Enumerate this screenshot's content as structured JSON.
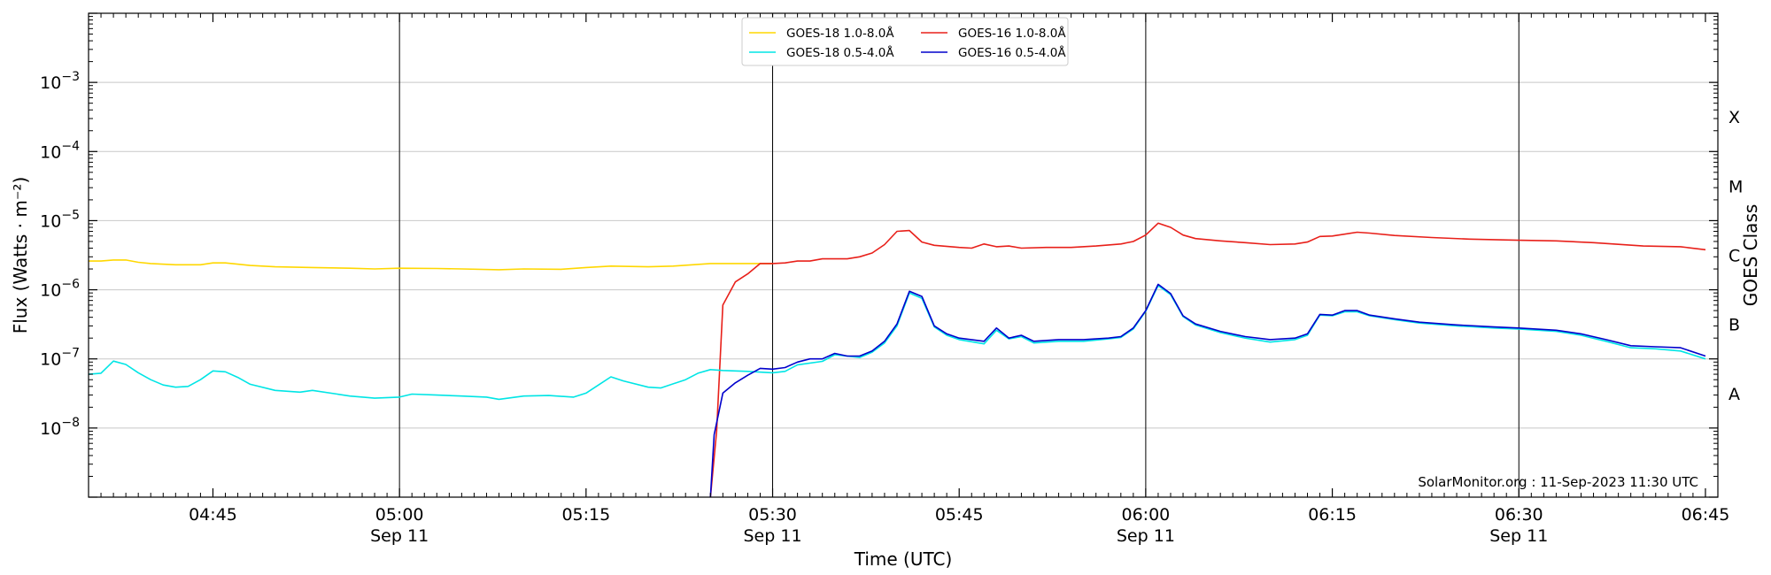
{
  "chart_data": {
    "type": "line",
    "xlabel": "Time (UTC)",
    "ylabel": "Flux (Watts · m⁻²)",
    "y2label": "GOES Class",
    "y_scale": "log",
    "ylim": [
      1e-09,
      0.01
    ],
    "xlim": [
      "04:35",
      "06:46"
    ],
    "vertical_lines": [
      "05:00",
      "05:30",
      "06:00",
      "06:30"
    ],
    "x_ticks": [
      {
        "t": "04:45",
        "label": "04:45",
        "date": ""
      },
      {
        "t": "05:00",
        "label": "05:00",
        "date": "Sep 11"
      },
      {
        "t": "05:15",
        "label": "05:15",
        "date": ""
      },
      {
        "t": "05:30",
        "label": "05:30",
        "date": "Sep 11"
      },
      {
        "t": "05:45",
        "label": "05:45",
        "date": ""
      },
      {
        "t": "06:00",
        "label": "06:00",
        "date": "Sep 11"
      },
      {
        "t": "06:15",
        "label": "06:15",
        "date": ""
      },
      {
        "t": "06:30",
        "label": "06:30",
        "date": "Sep 11"
      },
      {
        "t": "06:45",
        "label": "06:45",
        "date": ""
      }
    ],
    "y_ticks": [
      {
        "exp": -8,
        "base": "10",
        "sup": "−8"
      },
      {
        "exp": -7,
        "base": "10",
        "sup": "−7"
      },
      {
        "exp": -6,
        "base": "10",
        "sup": "−6"
      },
      {
        "exp": -5,
        "base": "10",
        "sup": "−5"
      },
      {
        "exp": -4,
        "base": "10",
        "sup": "−4"
      },
      {
        "exp": -3,
        "base": "10",
        "sup": "−3"
      }
    ],
    "goes_classes": [
      {
        "label": "A",
        "exp": -7.5
      },
      {
        "label": "B",
        "exp": -6.5
      },
      {
        "label": "C",
        "exp": -5.5
      },
      {
        "label": "M",
        "exp": -4.5
      },
      {
        "label": "X",
        "exp": -3.5
      }
    ],
    "grid": true,
    "legend_position": "top-center",
    "credit": "SolarMonitor.org : 11-Sep-2023 11:30 UTC",
    "series": [
      {
        "name": "GOES-18 1.0-8.0Å",
        "color": "#FFD700",
        "points": [
          [
            "04:35",
            2.6e-06
          ],
          [
            "04:36",
            2.6e-06
          ],
          [
            "04:37",
            2.7e-06
          ],
          [
            "04:38",
            2.7e-06
          ],
          [
            "04:39",
            2.5e-06
          ],
          [
            "04:40",
            2.4e-06
          ],
          [
            "04:42",
            2.3e-06
          ],
          [
            "04:44",
            2.3e-06
          ],
          [
            "04:45",
            2.45e-06
          ],
          [
            "04:46",
            2.45e-06
          ],
          [
            "04:48",
            2.25e-06
          ],
          [
            "04:50",
            2.15e-06
          ],
          [
            "04:53",
            2.1e-06
          ],
          [
            "04:56",
            2.05e-06
          ],
          [
            "04:58",
            2e-06
          ],
          [
            "05:00",
            2.05e-06
          ],
          [
            "05:03",
            2.03e-06
          ],
          [
            "05:05",
            2e-06
          ],
          [
            "05:08",
            1.95e-06
          ],
          [
            "05:10",
            2e-06
          ],
          [
            "05:13",
            1.98e-06
          ],
          [
            "05:15",
            2.1e-06
          ],
          [
            "05:17",
            2.2e-06
          ],
          [
            "05:20",
            2.15e-06
          ],
          [
            "05:22",
            2.2e-06
          ],
          [
            "05:25",
            2.4e-06
          ],
          [
            "05:30",
            2.4e-06
          ]
        ]
      },
      {
        "name": "GOES-16 1.0-8.0Å",
        "color": "#E8201A",
        "points": [
          [
            "05:25",
            5e-10
          ],
          [
            "05:25.5",
            9e-09
          ],
          [
            "05:26",
            6e-07
          ],
          [
            "05:27",
            1.3e-06
          ],
          [
            "05:28",
            1.7e-06
          ],
          [
            "05:29",
            2.4e-06
          ],
          [
            "05:30",
            2.4e-06
          ],
          [
            "05:31",
            2.45e-06
          ],
          [
            "05:32",
            2.6e-06
          ],
          [
            "05:33",
            2.6e-06
          ],
          [
            "05:34",
            2.8e-06
          ],
          [
            "05:35",
            2.8e-06
          ],
          [
            "05:36",
            2.8e-06
          ],
          [
            "05:37",
            3e-06
          ],
          [
            "05:38",
            3.4e-06
          ],
          [
            "05:39",
            4.5e-06
          ],
          [
            "05:40",
            7e-06
          ],
          [
            "05:41",
            7.2e-06
          ],
          [
            "05:42",
            4.9e-06
          ],
          [
            "05:43",
            4.4e-06
          ],
          [
            "05:45",
            4.1e-06
          ],
          [
            "05:46",
            4e-06
          ],
          [
            "05:47",
            4.6e-06
          ],
          [
            "05:48",
            4.2e-06
          ],
          [
            "05:49",
            4.3e-06
          ],
          [
            "05:50",
            4e-06
          ],
          [
            "05:52",
            4.1e-06
          ],
          [
            "05:54",
            4.1e-06
          ],
          [
            "05:56",
            4.3e-06
          ],
          [
            "05:58",
            4.6e-06
          ],
          [
            "05:59",
            5e-06
          ],
          [
            "06:00",
            6.2e-06
          ],
          [
            "06:01",
            9.2e-06
          ],
          [
            "06:02",
            8e-06
          ],
          [
            "06:03",
            6.2e-06
          ],
          [
            "06:04",
            5.5e-06
          ],
          [
            "06:06",
            5.1e-06
          ],
          [
            "06:08",
            4.8e-06
          ],
          [
            "06:10",
            4.5e-06
          ],
          [
            "06:12",
            4.6e-06
          ],
          [
            "06:13",
            4.9e-06
          ],
          [
            "06:14",
            5.9e-06
          ],
          [
            "06:15",
            6e-06
          ],
          [
            "06:17",
            6.8e-06
          ],
          [
            "06:18",
            6.6e-06
          ],
          [
            "06:20",
            6.1e-06
          ],
          [
            "06:23",
            5.7e-06
          ],
          [
            "06:26",
            5.4e-06
          ],
          [
            "06:30",
            5.2e-06
          ],
          [
            "06:33",
            5.1e-06
          ],
          [
            "06:36",
            4.8e-06
          ],
          [
            "06:40",
            4.3e-06
          ],
          [
            "06:43",
            4.2e-06
          ],
          [
            "06:45",
            3.8e-06
          ]
        ]
      },
      {
        "name": "GOES-18 0.5-4.0Å",
        "color": "#00E5E5",
        "points": [
          [
            "04:35",
            6e-08
          ],
          [
            "04:36",
            6.2e-08
          ],
          [
            "04:37",
            9.3e-08
          ],
          [
            "04:38",
            8.3e-08
          ],
          [
            "04:39",
            6.3e-08
          ],
          [
            "04:40",
            5e-08
          ],
          [
            "04:41",
            4.2e-08
          ],
          [
            "04:42",
            3.9e-08
          ],
          [
            "04:43",
            4e-08
          ],
          [
            "04:44",
            5e-08
          ],
          [
            "04:45",
            6.7e-08
          ],
          [
            "04:46",
            6.5e-08
          ],
          [
            "04:47",
            5.4e-08
          ],
          [
            "04:48",
            4.3e-08
          ],
          [
            "04:50",
            3.5e-08
          ],
          [
            "04:52",
            3.3e-08
          ],
          [
            "04:53",
            3.5e-08
          ],
          [
            "04:55",
            3.1e-08
          ],
          [
            "04:56",
            2.9e-08
          ],
          [
            "04:58",
            2.7e-08
          ],
          [
            "05:00",
            2.8e-08
          ],
          [
            "05:01",
            3.1e-08
          ],
          [
            "05:03",
            3e-08
          ],
          [
            "05:05",
            2.9e-08
          ],
          [
            "05:07",
            2.8e-08
          ],
          [
            "05:08",
            2.6e-08
          ],
          [
            "05:10",
            2.9e-08
          ],
          [
            "05:12",
            2.95e-08
          ],
          [
            "05:14",
            2.8e-08
          ],
          [
            "05:15",
            3.2e-08
          ],
          [
            "05:16",
            4.2e-08
          ],
          [
            "05:17",
            5.5e-08
          ],
          [
            "05:18",
            4.8e-08
          ],
          [
            "05:20",
            3.9e-08
          ],
          [
            "05:21",
            3.8e-08
          ],
          [
            "05:23",
            5e-08
          ],
          [
            "05:24",
            6.2e-08
          ],
          [
            "05:25",
            7e-08
          ],
          [
            "05:26",
            6.8e-08
          ],
          [
            "05:28",
            6.6e-08
          ],
          [
            "05:30",
            6.3e-08
          ],
          [
            "05:31",
            6.6e-08
          ],
          [
            "05:32",
            8.2e-08
          ],
          [
            "05:34",
            9.2e-08
          ],
          [
            "05:35",
            1.15e-07
          ],
          [
            "05:37",
            1.05e-07
          ],
          [
            "05:38",
            1.25e-07
          ],
          [
            "05:39",
            1.7e-07
          ],
          [
            "05:40",
            3e-07
          ],
          [
            "05:41",
            9e-07
          ],
          [
            "05:42",
            7.5e-07
          ],
          [
            "05:43",
            2.9e-07
          ],
          [
            "05:44",
            2.2e-07
          ],
          [
            "05:45",
            1.9e-07
          ],
          [
            "05:47",
            1.65e-07
          ],
          [
            "05:48",
            2.6e-07
          ],
          [
            "05:49",
            1.95e-07
          ],
          [
            "05:50",
            2.1e-07
          ],
          [
            "05:51",
            1.7e-07
          ],
          [
            "05:53",
            1.8e-07
          ],
          [
            "05:55",
            1.8e-07
          ],
          [
            "05:57",
            1.95e-07
          ],
          [
            "05:58",
            2.05e-07
          ],
          [
            "05:59",
            2.7e-07
          ],
          [
            "06:00",
            4.9e-07
          ],
          [
            "06:01",
            1.15e-06
          ],
          [
            "06:02",
            8.5e-07
          ],
          [
            "06:03",
            4.1e-07
          ],
          [
            "06:04",
            3.1e-07
          ],
          [
            "06:06",
            2.4e-07
          ],
          [
            "06:08",
            2e-07
          ],
          [
            "06:10",
            1.75e-07
          ],
          [
            "06:12",
            1.9e-07
          ],
          [
            "06:13",
            2.2e-07
          ],
          [
            "06:14",
            4.3e-07
          ],
          [
            "06:15",
            4.2e-07
          ],
          [
            "06:16",
            4.8e-07
          ],
          [
            "06:17",
            4.8e-07
          ],
          [
            "06:18",
            4.2e-07
          ],
          [
            "06:20",
            3.7e-07
          ],
          [
            "06:22",
            3.3e-07
          ],
          [
            "06:25",
            3e-07
          ],
          [
            "06:28",
            2.8e-07
          ],
          [
            "06:30",
            2.7e-07
          ],
          [
            "06:33",
            2.5e-07
          ],
          [
            "06:35",
            2.2e-07
          ],
          [
            "06:37",
            1.8e-07
          ],
          [
            "06:39",
            1.45e-07
          ],
          [
            "06:41",
            1.4e-07
          ],
          [
            "06:43",
            1.3e-07
          ],
          [
            "06:45",
            1e-07
          ]
        ]
      },
      {
        "name": "GOES-16 0.5-4.0Å",
        "color": "#0000CC",
        "points": [
          [
            "05:25",
            5e-10
          ],
          [
            "05:25.3",
            8e-09
          ],
          [
            "05:26",
            3.2e-08
          ],
          [
            "05:27",
            4.5e-08
          ],
          [
            "05:28",
            5.8e-08
          ],
          [
            "05:29",
            7.3e-08
          ],
          [
            "05:30",
            7.1e-08
          ],
          [
            "05:31",
            7.5e-08
          ],
          [
            "05:32",
            9e-08
          ],
          [
            "05:33",
            1e-07
          ],
          [
            "05:34",
            1e-07
          ],
          [
            "05:35",
            1.2e-07
          ],
          [
            "05:36",
            1.1e-07
          ],
          [
            "05:37",
            1.1e-07
          ],
          [
            "05:38",
            1.3e-07
          ],
          [
            "05:39",
            1.8e-07
          ],
          [
            "05:40",
            3.2e-07
          ],
          [
            "05:41",
            9.5e-07
          ],
          [
            "05:42",
            8e-07
          ],
          [
            "05:43",
            3e-07
          ],
          [
            "05:44",
            2.3e-07
          ],
          [
            "05:45",
            2e-07
          ],
          [
            "05:47",
            1.8e-07
          ],
          [
            "05:48",
            2.8e-07
          ],
          [
            "05:49",
            2e-07
          ],
          [
            "05:50",
            2.2e-07
          ],
          [
            "05:51",
            1.8e-07
          ],
          [
            "05:53",
            1.9e-07
          ],
          [
            "05:55",
            1.9e-07
          ],
          [
            "05:57",
            2e-07
          ],
          [
            "05:58",
            2.1e-07
          ],
          [
            "05:59",
            2.8e-07
          ],
          [
            "06:00",
            5e-07
          ],
          [
            "06:01",
            1.2e-06
          ],
          [
            "06:02",
            8.8e-07
          ],
          [
            "06:03",
            4.2e-07
          ],
          [
            "06:04",
            3.2e-07
          ],
          [
            "06:06",
            2.5e-07
          ],
          [
            "06:08",
            2.1e-07
          ],
          [
            "06:10",
            1.9e-07
          ],
          [
            "06:12",
            2e-07
          ],
          [
            "06:13",
            2.3e-07
          ],
          [
            "06:14",
            4.4e-07
          ],
          [
            "06:15",
            4.3e-07
          ],
          [
            "06:16",
            5e-07
          ],
          [
            "06:17",
            5e-07
          ],
          [
            "06:18",
            4.3e-07
          ],
          [
            "06:20",
            3.8e-07
          ],
          [
            "06:22",
            3.4e-07
          ],
          [
            "06:25",
            3.1e-07
          ],
          [
            "06:28",
            2.9e-07
          ],
          [
            "06:30",
            2.8e-07
          ],
          [
            "06:33",
            2.6e-07
          ],
          [
            "06:35",
            2.3e-07
          ],
          [
            "06:37",
            1.9e-07
          ],
          [
            "06:39",
            1.55e-07
          ],
          [
            "06:41",
            1.5e-07
          ],
          [
            "06:43",
            1.45e-07
          ],
          [
            "06:45",
            1.1e-07
          ]
        ]
      }
    ],
    "legend": [
      {
        "name": "GOES-18 1.0-8.0Å",
        "color": "#FFD700"
      },
      {
        "name": "GOES-18 0.5-4.0Å",
        "color": "#00E5E5"
      },
      {
        "name": "GOES-16 1.0-8.0Å",
        "color": "#E8201A"
      },
      {
        "name": "GOES-16 0.5-4.0Å",
        "color": "#0000CC"
      }
    ]
  }
}
